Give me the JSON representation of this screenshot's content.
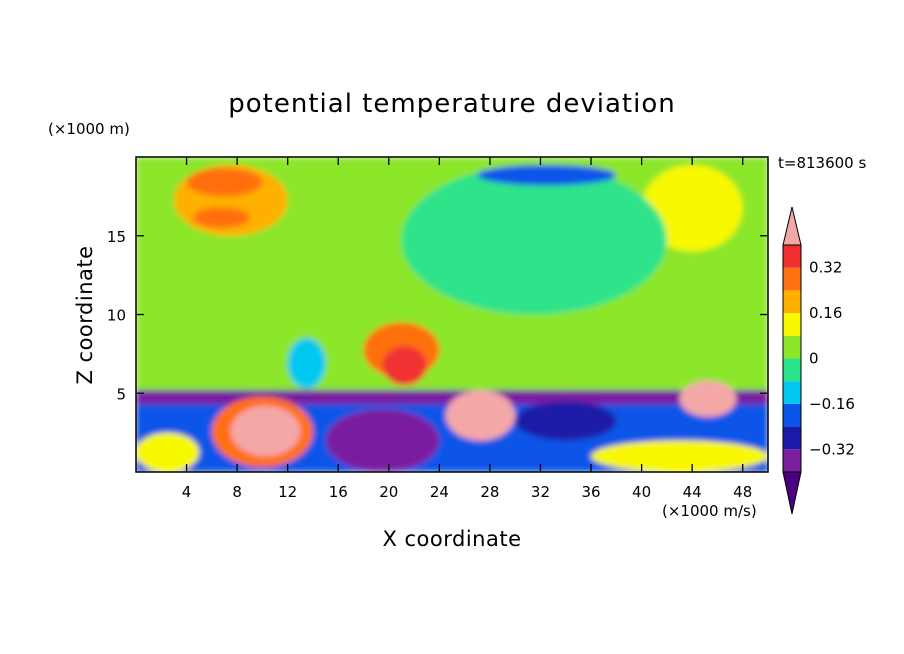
{
  "chart_data": {
    "type": "heatmap",
    "title": "potential temperature deviation",
    "xlabel": "X coordinate",
    "ylabel": "Z coordinate",
    "x_unit": "(×1000 m/s)",
    "y_unit": "(×1000 m)",
    "time_label": "t=813600 s",
    "xlim": [
      0,
      50
    ],
    "ylim": [
      0,
      20
    ],
    "x_ticks": [
      4,
      8,
      12,
      16,
      20,
      24,
      28,
      32,
      36,
      40,
      44,
      48
    ],
    "y_ticks": [
      5,
      10,
      15
    ],
    "x_tick_labels": [
      "4",
      "8",
      "12",
      "16",
      "20",
      "24",
      "28",
      "32",
      "36",
      "40",
      "44",
      "48"
    ],
    "y_tick_labels": [
      "5",
      "10",
      "15"
    ],
    "colorbar": {
      "levels": [
        -0.4,
        -0.32,
        -0.24,
        -0.16,
        -0.08,
        0,
        0.08,
        0.16,
        0.24,
        0.32,
        0.4
      ],
      "colors": [
        "#4b0082",
        "#7a1fa0",
        "#1a1aa8",
        "#0b55e8",
        "#00c8f0",
        "#2de38a",
        "#8ce62a",
        "#f8f800",
        "#ffb000",
        "#ff7010",
        "#f03030",
        "#f4a7a7"
      ],
      "tick_values": [
        0.32,
        0.16,
        0,
        -0.16,
        -0.32
      ],
      "tick_labels": [
        "0.32",
        "0.16",
        "0",
        "−0.16",
        "−0.32"
      ],
      "extend": "both"
    },
    "field_regions": [
      {
        "x": [
          0,
          50
        ],
        "y": [
          5.2,
          20
        ],
        "value": 0.02
      },
      {
        "x": [
          3,
          12
        ],
        "y": [
          15,
          19.5
        ],
        "value": 0.18
      },
      {
        "x": [
          4,
          10
        ],
        "y": [
          17.5,
          19.3
        ],
        "value": 0.26
      },
      {
        "x": [
          4.5,
          9
        ],
        "y": [
          15.5,
          16.8
        ],
        "value": 0.26
      },
      {
        "x": [
          40,
          48
        ],
        "y": [
          14,
          19.5
        ],
        "value": 0.12
      },
      {
        "x": [
          21,
          42
        ],
        "y": [
          10,
          19.5
        ],
        "value": -0.06
      },
      {
        "x": [
          27,
          38
        ],
        "y": [
          18.2,
          19.5
        ],
        "value": -0.18
      },
      {
        "x": [
          18,
          24
        ],
        "y": [
          6,
          9.5
        ],
        "value": 0.25
      },
      {
        "x": [
          19.5,
          23
        ],
        "y": [
          5.5,
          8
        ],
        "value": 0.33
      },
      {
        "x": [
          12,
          15
        ],
        "y": [
          5.3,
          8.5
        ],
        "value": -0.14
      },
      {
        "x": [
          0,
          50
        ],
        "y": [
          0,
          5.2
        ],
        "value": -0.2
      },
      {
        "x": [
          0,
          50
        ],
        "y": [
          4.3,
          5.2
        ],
        "value": -0.38
      },
      {
        "x": [
          6,
          14
        ],
        "y": [
          0.3,
          4.8
        ],
        "value": 0.25
      },
      {
        "x": [
          7.5,
          13
        ],
        "y": [
          1,
          4.2
        ],
        "value": 0.4
      },
      {
        "x": [
          24.5,
          30
        ],
        "y": [
          2,
          5.2
        ],
        "value": 0.4
      },
      {
        "x": [
          43,
          47.5
        ],
        "y": [
          3.5,
          5.8
        ],
        "value": 0.4
      },
      {
        "x": [
          15,
          24
        ],
        "y": [
          0,
          4
        ],
        "value": -0.36
      },
      {
        "x": [
          30,
          38
        ],
        "y": [
          2,
          4.5
        ],
        "value": -0.28
      },
      {
        "x": [
          0,
          5
        ],
        "y": [
          0,
          2.5
        ],
        "value": 0.1
      },
      {
        "x": [
          36,
          50
        ],
        "y": [
          0,
          2
        ],
        "value": 0.14
      }
    ]
  }
}
